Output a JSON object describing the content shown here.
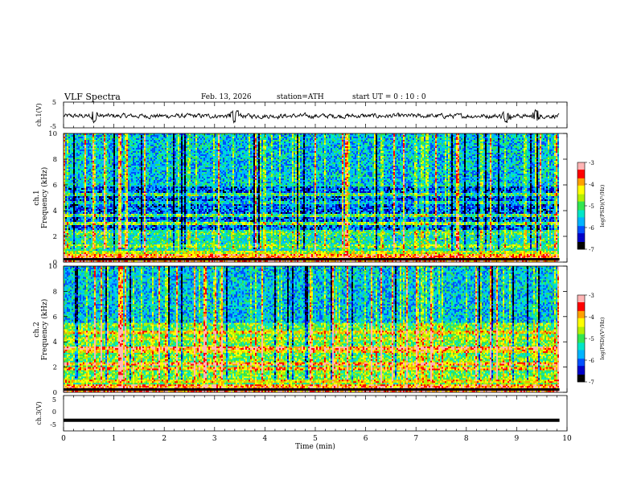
{
  "header": {
    "title": "VLF  Spectra",
    "date": "Feb. 13, 2026",
    "station": "station=ATH",
    "start_ut": "start  UT  =   0 : 10 : 0"
  },
  "colors": {
    "scale": [
      "#000000",
      "#0000c8",
      "#0050ff",
      "#00b4ff",
      "#00e6c8",
      "#32e650",
      "#b4f000",
      "#ffff00",
      "#ffa000",
      "#ff0000",
      "#ffb4b4"
    ]
  },
  "chart_data": [
    {
      "type": "line",
      "name": "ch1-voltage",
      "ylabel": "ch.1(V)",
      "ylim": [
        -5,
        5
      ],
      "y_ticks": [
        "5",
        "-5"
      ],
      "baseline": 0,
      "description_of_values": "noisy trace around 0 V with small excursions near 0.6, 3.4, 8.8 and 9.4 min",
      "events_min": [
        0.6,
        3.4,
        8.8,
        9.4
      ]
    },
    {
      "type": "heatmap",
      "name": "ch1-spectrogram",
      "ylabel": "ch.1\nFrequency (kHz)",
      "ylabel_line1": "ch.1",
      "ylabel_line2": "Frequency (kHz)",
      "ylim": [
        0,
        10
      ],
      "y_ticks": [
        "0",
        "2",
        "4",
        "6",
        "8",
        "10"
      ],
      "colorbar": {
        "label": "log(PSD)(V²/Hz)",
        "range": [
          -7,
          -3
        ],
        "ticks": [
          "-3",
          "-4",
          "-5",
          "-6",
          "-7"
        ]
      },
      "bands_khz": [
        0.2,
        0.5,
        0.8,
        1.3,
        2.2,
        3.0,
        3.6,
        4.6,
        5.3,
        6.0
      ],
      "band_levels": [
        -4.0,
        -3.8,
        -4.5,
        -4.8,
        -5.0,
        -4.8,
        -5.0,
        -5.5,
        -5.2,
        -5.5
      ]
    },
    {
      "type": "heatmap",
      "name": "ch2-spectrogram",
      "ylabel": "ch.2\nFrequency (kHz)",
      "ylabel_line1": "ch.2",
      "ylabel_line2": "Frequency (kHz)",
      "ylim": [
        0,
        10
      ],
      "y_ticks": [
        "0",
        "2",
        "4",
        "6",
        "8",
        "10"
      ],
      "colorbar": {
        "label": "log(PSD)(V²/Hz)",
        "range": [
          -7,
          -3
        ],
        "ticks": [
          "-3",
          "-4",
          "-5",
          "-6",
          "-7"
        ]
      },
      "bands_khz": [
        0.2,
        0.5,
        0.9,
        1.3,
        1.9,
        2.2,
        3.3,
        3.5,
        4.2,
        4.7,
        5.3
      ],
      "band_levels": [
        -3.6,
        -3.8,
        -4.2,
        -4.8,
        -4.0,
        -3.8,
        -4.2,
        -3.6,
        -4.5,
        -4.2,
        -5.0
      ]
    },
    {
      "type": "line",
      "name": "ch3-voltage",
      "ylabel": "ch.3(V)",
      "ylim": [
        -5,
        5
      ],
      "y_ticks": [
        "5",
        "0",
        "-5"
      ],
      "constant_value": -2
    }
  ],
  "x_axis": {
    "label": "Time  (min)",
    "xlim": [
      0,
      10
    ],
    "ticks": [
      "0",
      "1",
      "2",
      "3",
      "4",
      "5",
      "6",
      "7",
      "8",
      "9",
      "10"
    ],
    "data_end_min": 9.85
  }
}
